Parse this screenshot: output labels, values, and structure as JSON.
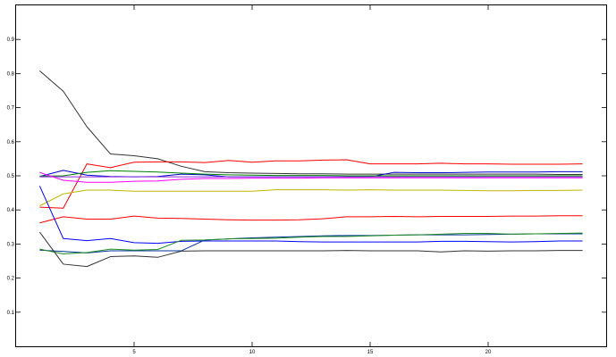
{
  "chart_data": {
    "type": "line",
    "title": "",
    "xlabel": "",
    "ylabel": "",
    "xlim": [
      0,
      25
    ],
    "ylim": [
      0,
      1
    ],
    "xticks": [
      5,
      10,
      15,
      20
    ],
    "xtick_labels": [
      "5",
      "10",
      "15",
      "20"
    ],
    "yticks": [
      0.1,
      0.2,
      0.3,
      0.4,
      0.5,
      0.6,
      0.7,
      0.8,
      0.9
    ],
    "ytick_labels": [
      "0.1",
      "0.2",
      "0.3",
      "0.4",
      "0.5",
      "0.6",
      "0.7",
      "0.8",
      "0.9"
    ],
    "grid": false,
    "legend": "none",
    "x": [
      1,
      2,
      3,
      4,
      5,
      6,
      7,
      8,
      9,
      10,
      11,
      12,
      13,
      14,
      15,
      16,
      17,
      18,
      19,
      20,
      21,
      22,
      23,
      24
    ],
    "series": [
      {
        "color": "#333333",
        "values": [
          0.808,
          0.748,
          0.644,
          0.564,
          0.559,
          0.55,
          0.528,
          0.512,
          0.509,
          0.508,
          0.507,
          0.506,
          0.506,
          0.505,
          0.505,
          0.505,
          0.505,
          0.505,
          0.505,
          0.505,
          0.505,
          0.505,
          0.504,
          0.504
        ]
      },
      {
        "color": "#ff0000",
        "values": [
          0.408,
          0.405,
          0.535,
          0.524,
          0.54,
          0.541,
          0.541,
          0.539,
          0.545,
          0.54,
          0.544,
          0.544,
          0.546,
          0.547,
          0.535,
          0.535,
          0.535,
          0.537,
          0.535,
          0.535,
          0.534,
          0.534,
          0.534,
          0.535
        ]
      },
      {
        "color": "#0000cc",
        "values": [
          0.498,
          0.516,
          0.502,
          0.498,
          0.497,
          0.498,
          0.505,
          0.503,
          0.497,
          0.497,
          0.497,
          0.497,
          0.497,
          0.497,
          0.497,
          0.51,
          0.509,
          0.509,
          0.51,
          0.511,
          0.511,
          0.511,
          0.512,
          0.512
        ]
      },
      {
        "color": "#008000",
        "values": [
          0.499,
          0.5,
          0.51,
          0.515,
          0.513,
          0.511,
          0.508,
          0.505,
          0.503,
          0.502,
          0.501,
          0.501,
          0.501,
          0.5,
          0.5,
          0.5,
          0.5,
          0.5,
          0.5,
          0.5,
          0.5,
          0.5,
          0.5,
          0.5
        ]
      },
      {
        "color": "#8a2be2",
        "values": [
          0.497,
          0.497,
          0.497,
          0.497,
          0.497,
          0.497,
          0.497,
          0.497,
          0.497,
          0.497,
          0.497,
          0.497,
          0.497,
          0.497,
          0.497,
          0.497,
          0.497,
          0.497,
          0.497,
          0.497,
          0.497,
          0.497,
          0.497,
          0.497
        ]
      },
      {
        "color": "#ff00ff",
        "values": [
          0.51,
          0.487,
          0.481,
          0.481,
          0.484,
          0.485,
          0.49,
          0.492,
          0.492,
          0.493,
          0.493,
          0.493,
          0.494,
          0.494,
          0.494,
          0.494,
          0.494,
          0.494,
          0.494,
          0.494,
          0.494,
          0.494,
          0.494,
          0.494
        ]
      },
      {
        "color": "#bdb800",
        "values": [
          0.412,
          0.447,
          0.458,
          0.458,
          0.455,
          0.455,
          0.455,
          0.455,
          0.455,
          0.455,
          0.459,
          0.459,
          0.459,
          0.458,
          0.459,
          0.458,
          0.458,
          0.458,
          0.457,
          0.456,
          0.456,
          0.457,
          0.457,
          0.458
        ]
      },
      {
        "color": "#ff0000",
        "values": [
          0.362,
          0.38,
          0.373,
          0.373,
          0.382,
          0.376,
          0.375,
          0.373,
          0.371,
          0.37,
          0.37,
          0.371,
          0.374,
          0.38,
          0.38,
          0.381,
          0.38,
          0.381,
          0.381,
          0.381,
          0.382,
          0.382,
          0.383,
          0.383
        ]
      },
      {
        "color": "#0000ff",
        "values": [
          0.47,
          0.316,
          0.31,
          0.316,
          0.304,
          0.302,
          0.308,
          0.309,
          0.309,
          0.309,
          0.309,
          0.307,
          0.306,
          0.306,
          0.306,
          0.306,
          0.306,
          0.308,
          0.308,
          0.307,
          0.306,
          0.307,
          0.309,
          0.309
        ]
      },
      {
        "color": "#003399",
        "values": [
          0.282,
          0.278,
          0.274,
          0.28,
          0.28,
          0.28,
          0.28,
          0.312,
          0.315,
          0.318,
          0.32,
          0.322,
          0.324,
          0.325,
          0.325,
          0.326,
          0.327,
          0.327,
          0.327,
          0.328,
          0.329,
          0.33,
          0.33,
          0.33
        ]
      },
      {
        "color": "#228b22",
        "values": [
          0.285,
          0.271,
          0.275,
          0.285,
          0.282,
          0.284,
          0.311,
          0.312,
          0.315,
          0.316,
          0.317,
          0.32,
          0.322,
          0.322,
          0.324,
          0.326,
          0.327,
          0.329,
          0.331,
          0.331,
          0.329,
          0.33,
          0.331,
          0.332
        ]
      },
      {
        "color": "#333333",
        "values": [
          0.335,
          0.241,
          0.234,
          0.263,
          0.265,
          0.261,
          0.279,
          0.28,
          0.28,
          0.28,
          0.28,
          0.28,
          0.28,
          0.281,
          0.28,
          0.28,
          0.28,
          0.277,
          0.28,
          0.279,
          0.28,
          0.28,
          0.281,
          0.281
        ]
      }
    ]
  }
}
